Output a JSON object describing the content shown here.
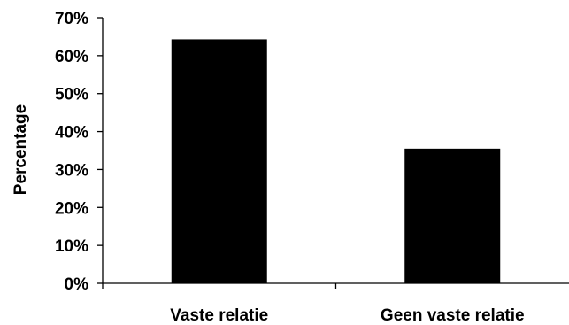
{
  "chart_data": {
    "type": "bar",
    "categories": [
      "Vaste relatie",
      "Geen vaste relatie"
    ],
    "values": [
      64.3,
      35.5
    ],
    "value_unit": "%",
    "ylabel": "Percentage",
    "xlabel": "",
    "ylim": [
      0,
      70
    ],
    "yticks": [
      0,
      10,
      20,
      30,
      40,
      50,
      60,
      70
    ],
    "ytick_labels": [
      "0%",
      "10%",
      "20%",
      "30%",
      "40%",
      "50%",
      "60%",
      "70%"
    ],
    "grid": false,
    "legend": "none",
    "bar_color": "#000000"
  }
}
